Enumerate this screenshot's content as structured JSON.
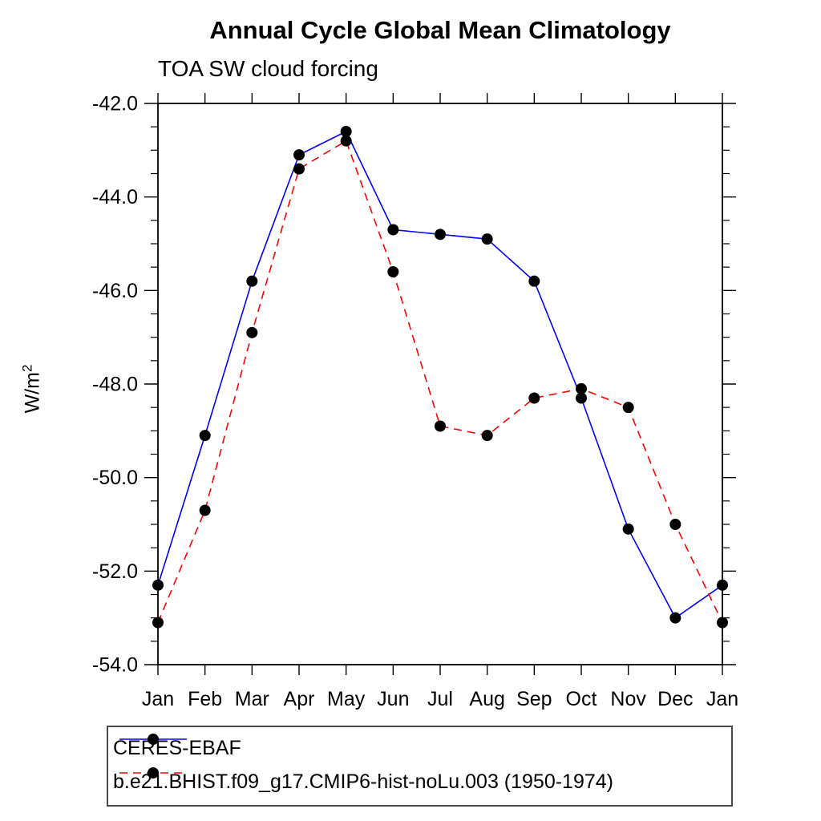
{
  "title": "Annual Cycle Global Mean Climatology",
  "subtitle": "TOA SW cloud forcing",
  "ylabel": "W/m",
  "ylabel_sup": "2",
  "colors": {
    "series1": "#0000ff",
    "series2": "#ff0000",
    "marker": "#000000",
    "axis": "#000000",
    "legend_border": "#4a4a4a"
  },
  "chart_data": {
    "type": "line",
    "categories": [
      "Jan",
      "Feb",
      "Mar",
      "Apr",
      "May",
      "Jun",
      "Jul",
      "Aug",
      "Sep",
      "Oct",
      "Nov",
      "Dec",
      "Jan"
    ],
    "series": [
      {
        "name": "CERES-EBAF",
        "color": "#0000ff",
        "line_style": "solid",
        "marker": "filled-circle",
        "marker_color": "#000000",
        "values": [
          -52.3,
          -49.1,
          -45.8,
          -43.1,
          -42.6,
          -44.7,
          -44.8,
          -44.9,
          -45.8,
          -48.3,
          -51.1,
          -53.0,
          -52.3
        ]
      },
      {
        "name": "b.e21.BHIST.f09_g17.CMIP6-hist-noLu.003 (1950-1974)",
        "color": "#ff0000",
        "line_style": "dashed",
        "marker": "filled-circle",
        "marker_color": "#000000",
        "values": [
          -53.1,
          -50.7,
          -46.9,
          -43.4,
          -42.8,
          -45.6,
          -48.9,
          -49.1,
          -48.3,
          -48.1,
          -48.5,
          -51.0,
          -53.1
        ]
      }
    ],
    "xlabel": "",
    "ylabel": "W/m2",
    "ylim": [
      -54.0,
      -42.0
    ],
    "ytick_labels": [
      "-42.0",
      "-44.0",
      "-46.0",
      "-48.0",
      "-50.0",
      "-52.0",
      "-54.0"
    ],
    "ytick_major": [
      -42.0,
      -44.0,
      -46.0,
      -48.0,
      -50.0,
      -52.0,
      -54.0
    ],
    "ytick_minor_step": 0.5,
    "grid": false,
    "legend_position": "bottom"
  }
}
